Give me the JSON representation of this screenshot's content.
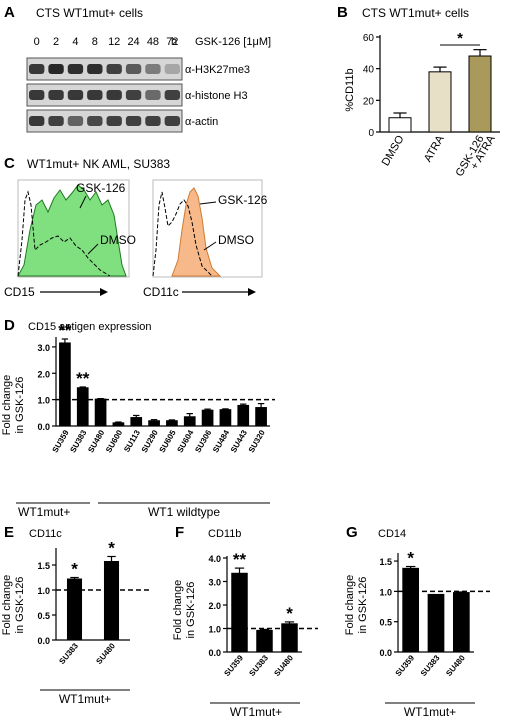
{
  "panel_letters": {
    "A": "A",
    "B": "B",
    "C": "C",
    "D": "D",
    "E": "E",
    "F": "F",
    "G": "G"
  },
  "panel_a": {
    "title": "CTS WT1mut+ cells",
    "timepoints": [
      "0",
      "2",
      "4",
      "8",
      "12",
      "24",
      "48",
      "72"
    ],
    "time_unit": "h",
    "treatment": "GSK-126 [1μM]",
    "blots": [
      "α-H3K27me3",
      "α-histone H3",
      "α-actin"
    ],
    "band_intensity": [
      [
        0.85,
        0.95,
        0.9,
        0.9,
        0.8,
        0.65,
        0.45,
        0.2
      ],
      [
        0.85,
        0.85,
        0.85,
        0.85,
        0.85,
        0.8,
        0.55,
        0.8
      ],
      [
        0.85,
        0.8,
        0.6,
        0.75,
        0.8,
        0.8,
        0.8,
        0.8
      ]
    ]
  },
  "panel_b": {
    "title": "CTS WT1mut+ cells",
    "ylabel": "%CD11b",
    "significance": "*",
    "colors": [
      "#ffffff",
      "#e7dfc6",
      "#a99a5c"
    ]
  },
  "panel_c": {
    "title": "WT1mut+ NK AML, SU383",
    "left": {
      "xlabel": "CD15",
      "treated": "GSK-126",
      "control": "DMSO",
      "fill": "#80e080"
    },
    "right": {
      "xlabel": "CD11c",
      "treated": "GSK-126",
      "control": "DMSO",
      "fill": "#f7b98a"
    }
  },
  "panel_d": {
    "title": "CD15 antigen expression",
    "ylabel1": "Fold change",
    "ylabel2": "in GSK-126",
    "group_mut": "WT1mut+",
    "group_wt": "WT1 wildtype"
  },
  "panel_e": {
    "title": "CD11c",
    "ylabel1": "Fold change",
    "ylabel2": "in GSK-126",
    "group": "WT1mut+"
  },
  "panel_f": {
    "title": "CD11b",
    "ylabel1": "Fold change",
    "ylabel2": "in GSK-126",
    "group": "WT1mut+"
  },
  "panel_g": {
    "title": "CD14",
    "ylabel1": "Fold change",
    "ylabel2": "in GSK-126",
    "group": "WT1mut+"
  },
  "chart_data": [
    {
      "id": "B",
      "type": "bar",
      "categories": [
        "DMSO",
        "ATRA",
        "GSK-126\n+ ATRA"
      ],
      "values": [
        9,
        38,
        48
      ],
      "errors": [
        3,
        3,
        4
      ],
      "ylim": [
        0,
        60
      ],
      "yticks": [
        0,
        20,
        40,
        60
      ],
      "ylabel": "%CD11b",
      "annotations": [
        {
          "from": 1,
          "to": 2,
          "text": "*"
        }
      ]
    },
    {
      "id": "D",
      "type": "bar",
      "categories": [
        "SU359",
        "SU383",
        "SU480",
        "SU600",
        "SU113",
        "SU290",
        "SU605",
        "SU604",
        "SU306",
        "SU484",
        "SU443",
        "SU320"
      ],
      "values": [
        3.15,
        1.45,
        1.02,
        0.12,
        0.32,
        0.2,
        0.2,
        0.35,
        0.6,
        0.62,
        0.78,
        0.7
      ],
      "errors": [
        0.15,
        0.03,
        0.02,
        0.03,
        0.08,
        0.04,
        0.03,
        0.12,
        0.04,
        0.03,
        0.05,
        0.15
      ],
      "sig": [
        "**",
        "**",
        "",
        "",
        "",
        "",
        "",
        "",
        "",
        "",
        "",
        ""
      ],
      "ylim": [
        0,
        3.3
      ],
      "yticks": [
        0.0,
        1.0,
        2.0,
        3.0
      ],
      "reference": 1.0
    },
    {
      "id": "E",
      "type": "bar",
      "categories": [
        "SU383",
        "SU480"
      ],
      "values": [
        1.22,
        1.57
      ],
      "errors": [
        0.03,
        0.1
      ],
      "sig": [
        "*",
        "*"
      ],
      "ylim": [
        0,
        1.8
      ],
      "yticks": [
        0.0,
        0.5,
        1.0,
        1.5
      ],
      "reference": 1.0
    },
    {
      "id": "F",
      "type": "bar",
      "categories": [
        "SU359",
        "SU383",
        "SU480"
      ],
      "values": [
        3.35,
        0.92,
        1.2
      ],
      "errors": [
        0.22,
        0.04,
        0.08
      ],
      "sig": [
        "**",
        "",
        "*"
      ],
      "ylim": [
        0,
        4.0
      ],
      "yticks": [
        0.0,
        1.0,
        2.0,
        3.0,
        4.0
      ],
      "reference": 1.0
    },
    {
      "id": "G",
      "type": "bar",
      "categories": [
        "SU359",
        "SU383",
        "SU480"
      ],
      "values": [
        1.38,
        0.95,
        0.98
      ],
      "errors": [
        0.03,
        0.0,
        0.01
      ],
      "sig": [
        "*",
        "",
        ""
      ],
      "ylim": [
        0,
        1.6
      ],
      "yticks": [
        0.0,
        0.5,
        1.0,
        1.5
      ],
      "reference": 1.0
    }
  ]
}
